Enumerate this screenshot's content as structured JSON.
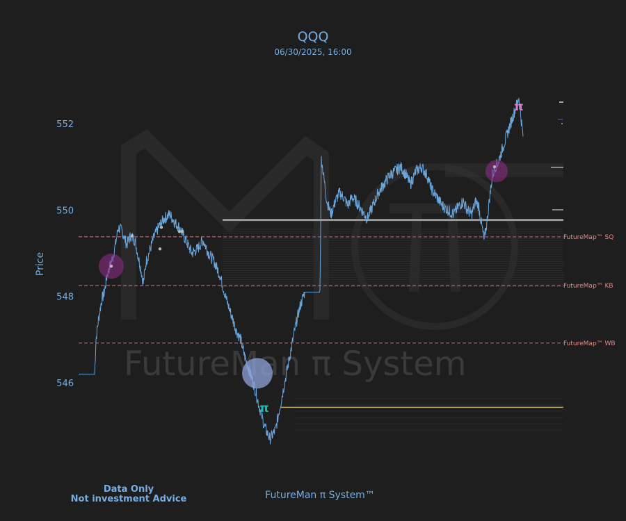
{
  "chart_data": {
    "type": "line",
    "title": "QQQ",
    "subtitle": "06/30/2025, 16:00",
    "xlabel": "",
    "ylabel": "Price",
    "ylim": [
      544.4,
      552.8
    ],
    "yticks": [
      546,
      548,
      550,
      552
    ],
    "grid": false,
    "series": [
      {
        "values": [
          546.2,
          546.2,
          546.2,
          546.2,
          547.0,
          547.4,
          547.9,
          548.1,
          548.5,
          548.7,
          548.9,
          549.2,
          549.6,
          549.5,
          549.2,
          549.4,
          549.3,
          548.9,
          548.6,
          548.3,
          548.8,
          549.1,
          549.4,
          549.6,
          549.8,
          549.9,
          549.7,
          549.6,
          549.4,
          549.2,
          549.0,
          549.1,
          549.3,
          549.0,
          548.8,
          548.5,
          547.9,
          547.5,
          547.2,
          547.0,
          546.6,
          546.2,
          545.9,
          545.5,
          545.0,
          544.7,
          544.9,
          545.4,
          545.9,
          546.4,
          546.9,
          547.4,
          547.8,
          548.1,
          548.1,
          548.1,
          548.1,
          551.2,
          550.2,
          549.9,
          550.2,
          550.4,
          550.3,
          550.1,
          550.3,
          550.2,
          550.0,
          549.8,
          550.1,
          550.4,
          550.6,
          550.8,
          550.9,
          551.0,
          550.8,
          550.6,
          550.9,
          551.0,
          550.8,
          550.5,
          550.3,
          550.1,
          550.0,
          549.9,
          550.1,
          550.2,
          550.0,
          549.9,
          550.2,
          550.1,
          549.7,
          549.3,
          549.7,
          550.3,
          550.8,
          551.0,
          551.1,
          551.3,
          551.5,
          551.7,
          552.0,
          552.3,
          552.6,
          551.7
        ]
      }
    ],
    "levels": [
      {
        "label": "FutureMap™ SQ",
        "value": 549.38,
        "color": "#c06070",
        "style": "dashed"
      },
      {
        "label": "FutureMap™ KB",
        "value": 548.25,
        "color": "#c06070",
        "style": "dashed"
      },
      {
        "label": "FutureMap™ WB",
        "value": 546.92,
        "color": "#c06070",
        "style": "dashed"
      },
      {
        "label": "",
        "value": 549.77,
        "color": "#9a9a9a",
        "style": "solid"
      },
      {
        "label": "",
        "value": 545.43,
        "color": "#b5a65a",
        "style": "solid"
      }
    ],
    "markers": [
      {
        "symbol": "π",
        "value": 545.42,
        "color": "#1ab8b0"
      },
      {
        "symbol": "π",
        "value": 552.4,
        "color": "#d77bc9"
      }
    ],
    "watermark": "FutureMan π System"
  },
  "footer": {
    "center": "FutureMan π System™",
    "disclaimer_line1": "Data Only",
    "disclaimer_line2": "Not investment Advice"
  }
}
